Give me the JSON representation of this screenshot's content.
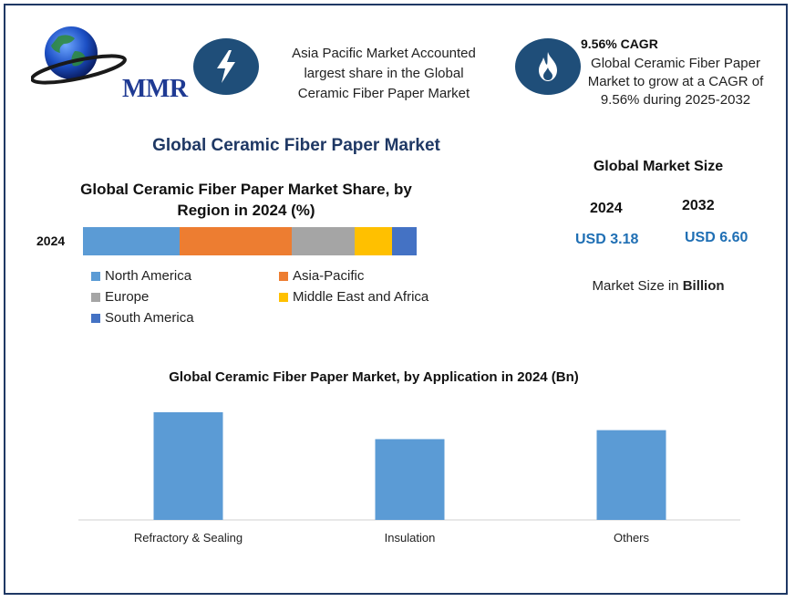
{
  "logo": {
    "text": "MMR",
    "icon": "globe-icon"
  },
  "info_box_1": {
    "icon": "lightning-icon",
    "text_lines": [
      "Asia Pacific Market Accounted",
      "largest share in the Global",
      "Ceramic Fiber Paper Market"
    ]
  },
  "info_box_2": {
    "icon": "flame-icon",
    "title": "9.56% CAGR",
    "text_lines": [
      "Global Ceramic Fiber Paper",
      "Market to grow at a CAGR of",
      "9.56% during 2025-2032"
    ]
  },
  "main_title": "Global Ceramic Fiber Paper Market",
  "market_size": {
    "title": "Global Market Size",
    "year_start": "2024",
    "year_end": "2032",
    "value_start": "USD 3.18",
    "value_end": "USD 6.60",
    "note_prefix": "Market Size in ",
    "note_bold": "Billion"
  },
  "colors": {
    "north_america": "#5b9bd5",
    "asia_pacific": "#ed7d31",
    "europe": "#a5a5a5",
    "mea": "#ffc000",
    "south_america": "#4472c4",
    "app_bar": "#5b9bd5",
    "icon_bg": "#1f4e79"
  },
  "chart_data": [
    {
      "type": "bar",
      "orientation": "horizontal-stacked",
      "title_lines": [
        "Global Ceramic Fiber Paper Market Share, by",
        "Region in 2024 (%)"
      ],
      "categories": [
        "2024"
      ],
      "series": [
        {
          "name": "North America",
          "values": [
            29
          ]
        },
        {
          "name": "Asia-Pacific",
          "values": [
            33.5
          ]
        },
        {
          "name": "Europe",
          "values": [
            19
          ]
        },
        {
          "name": "Middle East and Africa",
          "values": [
            11
          ]
        },
        {
          "name": "South America",
          "values": [
            7.5
          ]
        }
      ],
      "xlim": [
        0,
        100
      ],
      "grid": false,
      "legend": "bottom"
    },
    {
      "type": "bar",
      "title": "Global Ceramic Fiber Paper Market, by Application in 2024 (Bn)",
      "categories": [
        "Refractory & Sealing",
        "Insulation",
        "Others"
      ],
      "values": [
        1.2,
        0.9,
        1.0
      ],
      "ylim": [
        0,
        1.25
      ],
      "grid": false
    }
  ]
}
